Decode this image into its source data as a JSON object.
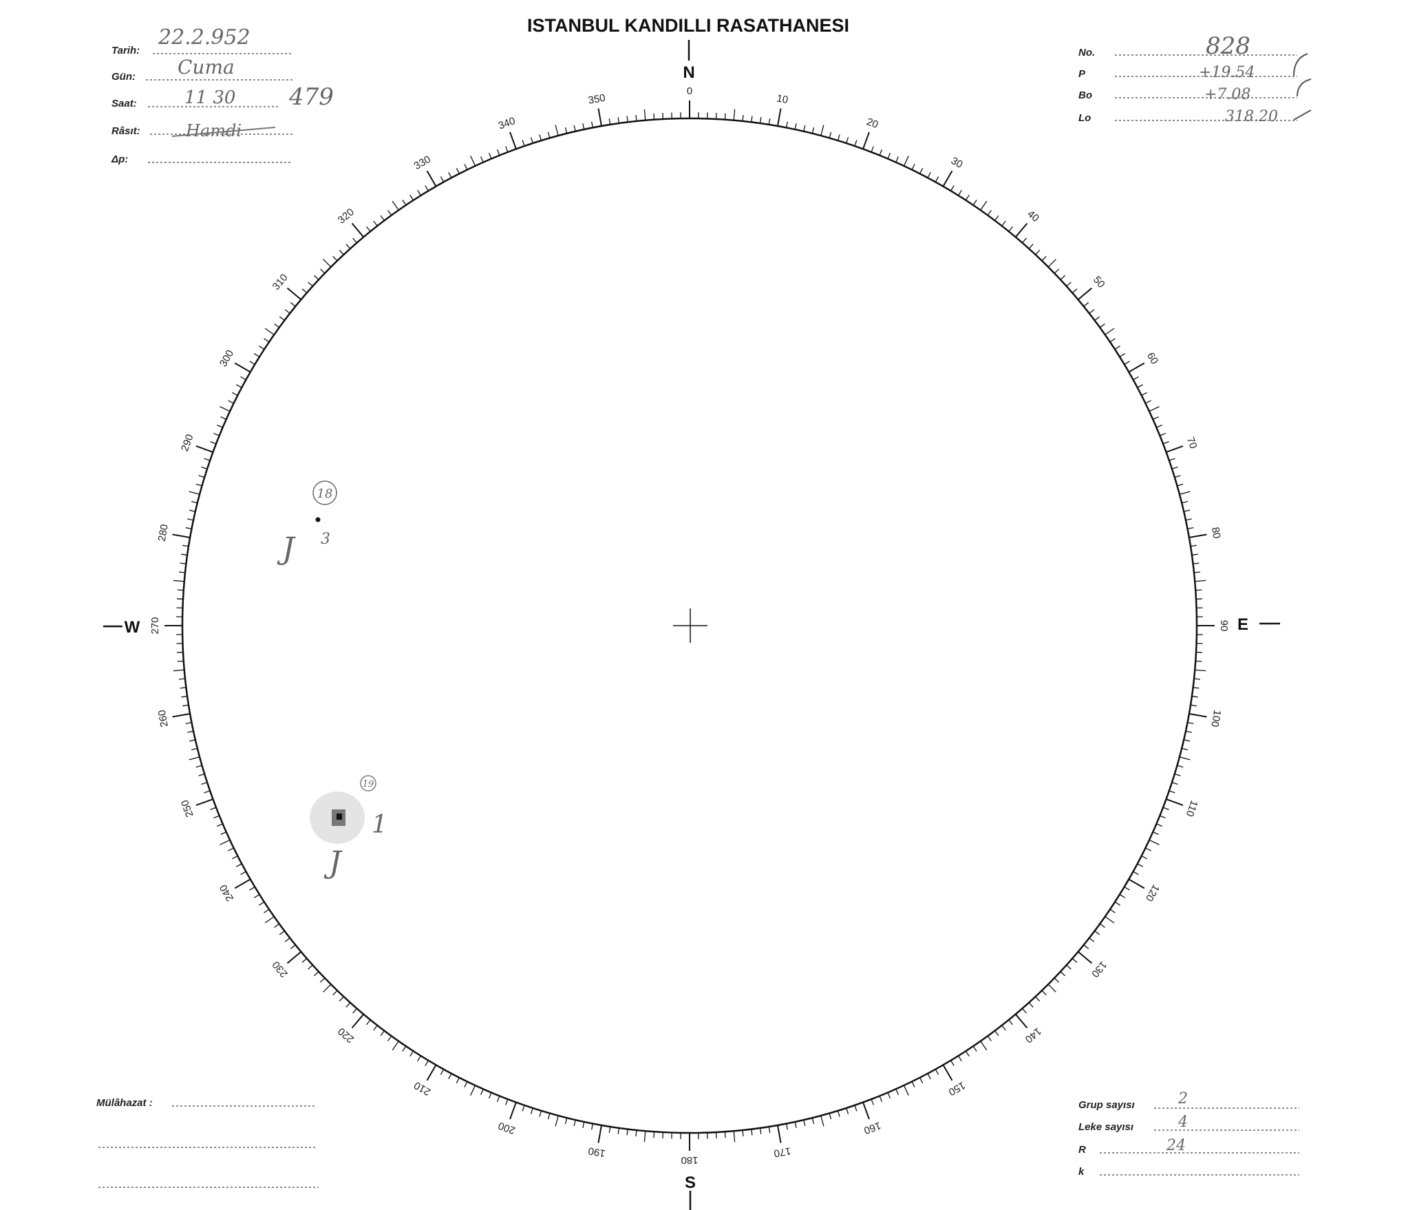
{
  "title": "ISTANBUL KANDILLI RASATHANESI",
  "compass": {
    "north": "N",
    "south": "S",
    "east": "E",
    "west": "W"
  },
  "degree_labels": [
    "0",
    "10",
    "20",
    "30",
    "40",
    "50",
    "60",
    "70",
    "80",
    "90",
    "100",
    "110",
    "120",
    "130",
    "140",
    "150",
    "160",
    "170",
    "180",
    "190",
    "200",
    "210",
    "220",
    "230",
    "240",
    "250",
    "260",
    "270",
    "280",
    "290",
    "300",
    "310",
    "320",
    "330",
    "340",
    "350"
  ],
  "left_header": {
    "tarih": {
      "label": "Tarih:",
      "value": "22.2.952"
    },
    "gun": {
      "label": "Gün:",
      "value": "Cuma"
    },
    "saat": {
      "label": "Saat:",
      "value": "11 30",
      "note": "479"
    },
    "rasit": {
      "label": "Râsıt:",
      "value": "Hamdi"
    },
    "delta_p": {
      "label": "Δp:",
      "value": ""
    }
  },
  "right_header": {
    "no": {
      "label": "No.",
      "value": "828"
    },
    "p": {
      "label": "P",
      "value": "+19.54"
    },
    "bo": {
      "label": "Bo",
      "value": "+7.08"
    },
    "lo": {
      "label": "Lo",
      "value": "318.20"
    }
  },
  "summary": {
    "grup": {
      "label": "Grup sayısı",
      "value": "2"
    },
    "leke": {
      "label": "Leke sayısı",
      "value": "4"
    },
    "r": {
      "label": "R",
      "value": "24"
    },
    "k": {
      "label": "k",
      "value": ""
    }
  },
  "remarks": {
    "label": "Mülâhazat :"
  },
  "sunspot_groups": [
    {
      "number": "18",
      "spot_count": "3",
      "class": "J"
    },
    {
      "number": "19",
      "spot_count": "1",
      "class": "J"
    }
  ]
}
